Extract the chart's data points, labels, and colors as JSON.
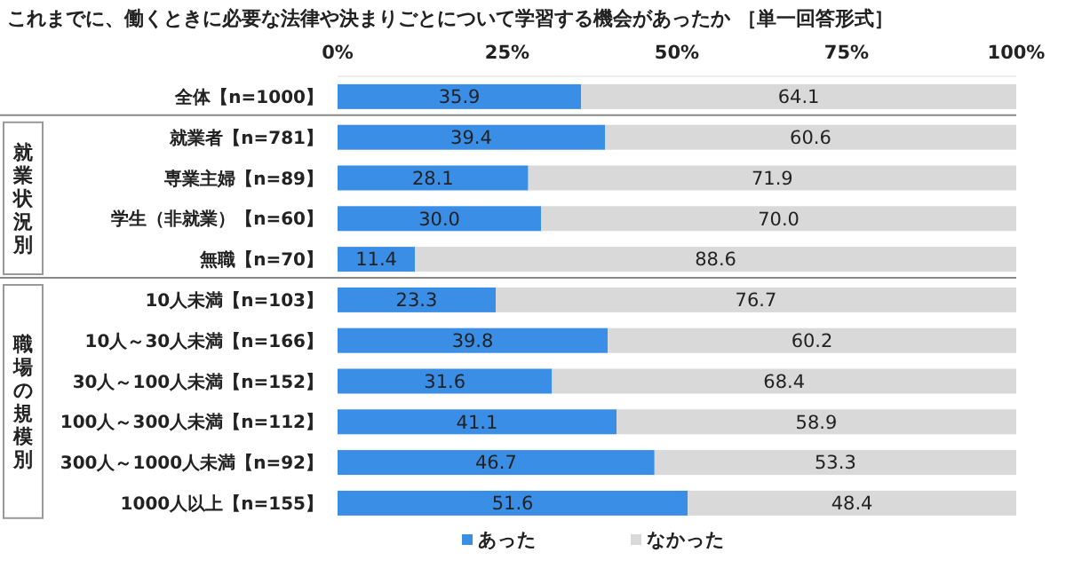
{
  "chart_data": {
    "type": "bar",
    "orientation": "horizontal",
    "stacked": true,
    "title": "これまでに、働くときに必要な法律や決まりごとについて学習する機会があったか ［単一回答形式］",
    "categories": [
      "全体【n=1000】",
      "就業者【n=781】",
      "専業主婦【n=89】",
      "学生（非就業）【n=60】",
      "無職【n=70】",
      "10人未満【n=103】",
      "10人～30人未満【n=166】",
      "30人～100人未満【n=152】",
      "100人～300人未満【n=112】",
      "300人～1000人未満【n=92】",
      "1000人以上【n=155】"
    ],
    "series": [
      {
        "name": "あった",
        "color": "#3a8ee6",
        "values": [
          35.9,
          39.4,
          28.1,
          30.0,
          11.4,
          23.3,
          39.8,
          31.6,
          41.1,
          46.7,
          51.6
        ],
        "value_labels": [
          "35.9",
          "39.4",
          "28.1",
          "30.0",
          "11.4",
          "23.3",
          "39.8",
          "31.6",
          "41.1",
          "46.7",
          "51.6"
        ]
      },
      {
        "name": "なかった",
        "color": "#d9d9d9",
        "values": [
          64.1,
          60.6,
          71.9,
          70.0,
          88.6,
          76.7,
          60.2,
          68.4,
          58.9,
          53.3,
          48.4
        ],
        "value_labels": [
          "64.1",
          "60.6",
          "71.9",
          "70.0",
          "88.6",
          "76.7",
          "60.2",
          "68.4",
          "58.9",
          "53.3",
          "48.4"
        ]
      }
    ],
    "xlim": [
      0,
      100
    ],
    "xticks": [
      {
        "value": 0,
        "label": "0%"
      },
      {
        "value": 25,
        "label": "25%"
      },
      {
        "value": 50,
        "label": "50%"
      },
      {
        "value": 75,
        "label": "75%"
      },
      {
        "value": 100,
        "label": "100%"
      }
    ],
    "legend": "bottom",
    "annotations": [
      "就業状況別",
      "職場の規模別"
    ]
  }
}
